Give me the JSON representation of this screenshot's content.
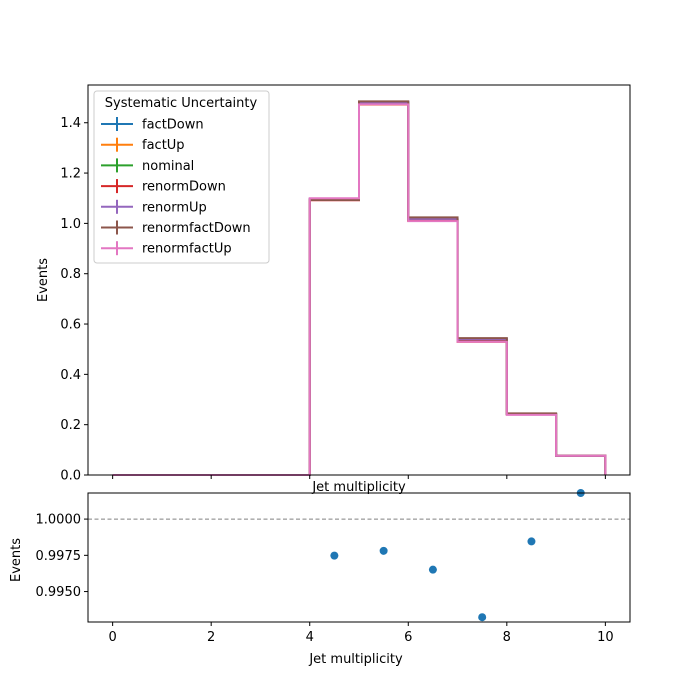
{
  "chart_data": [
    {
      "type": "line",
      "drawstyle": "steps",
      "bin_edges": [
        0,
        1,
        2,
        3,
        4,
        5,
        6,
        7,
        8,
        9,
        10
      ],
      "xlabel": "Jet multiplicity",
      "ylabel": "Events",
      "xlim": [
        -0.5,
        10.5
      ],
      "ylim": [
        0,
        1.55
      ],
      "yticks": [
        0.0,
        0.2,
        0.4,
        0.6,
        0.8,
        1.0,
        1.2,
        1.4
      ],
      "xticks": [
        0,
        2,
        4,
        6,
        8,
        10
      ],
      "grid": false,
      "legend": {
        "title": "Systematic Uncertainty",
        "placement": "top-left"
      },
      "series": [
        {
          "name": "factDown",
          "color": "#1f77b4",
          "values": [
            0,
            0,
            0,
            0,
            1.097,
            1.483,
            1.018,
            0.542,
            0.244,
            0.076
          ]
        },
        {
          "name": "factUp",
          "color": "#ff7f0e",
          "values": [
            0,
            0,
            0,
            0,
            1.094,
            1.472,
            1.01,
            0.529,
            0.241,
            0.077
          ]
        },
        {
          "name": "nominal",
          "color": "#2ca02c",
          "values": [
            0,
            0,
            0,
            0,
            1.095,
            1.477,
            1.014,
            0.535,
            0.242,
            0.0765
          ]
        },
        {
          "name": "renormDown",
          "color": "#d62728",
          "values": [
            0,
            0,
            0,
            0,
            1.092,
            1.474,
            1.011,
            0.531,
            0.2415,
            0.0765
          ]
        },
        {
          "name": "renormUp",
          "color": "#9467bd",
          "values": [
            0,
            0,
            0,
            0,
            1.098,
            1.48,
            1.018,
            0.539,
            0.2425,
            0.0765
          ]
        },
        {
          "name": "renormfactDown",
          "color": "#8c564b",
          "values": [
            0,
            0,
            0,
            0,
            1.093,
            1.485,
            1.024,
            0.544,
            0.245,
            0.077
          ]
        },
        {
          "name": "renormfactUp",
          "color": "#e377c2",
          "values": [
            0,
            0,
            0,
            0,
            1.1,
            1.473,
            1.009,
            0.529,
            0.239,
            0.0765
          ]
        }
      ]
    },
    {
      "type": "scatter",
      "xlabel": "Jet multiplicity",
      "ylabel": "Events",
      "xlim": [
        -0.5,
        10.5
      ],
      "ylim": [
        0.9929,
        1.0018
      ],
      "yticks": [
        0.995,
        0.9975,
        1.0
      ],
      "ytick_labels": [
        "0.9950",
        "0.9975",
        "1.0000"
      ],
      "xticks": [
        0,
        2,
        4,
        6,
        8,
        10
      ],
      "xtick_labels": [
        "0",
        "2",
        "4",
        "6",
        "8",
        "10"
      ],
      "reference_line": 1.0,
      "reference_line_color": "#808080",
      "point_color": "#1f77b4",
      "x": [
        4.5,
        5.5,
        6.5,
        7.5,
        8.5,
        9.5
      ],
      "y": [
        0.99748,
        0.99781,
        0.99651,
        0.99323,
        0.99846,
        1.0018
      ]
    }
  ]
}
